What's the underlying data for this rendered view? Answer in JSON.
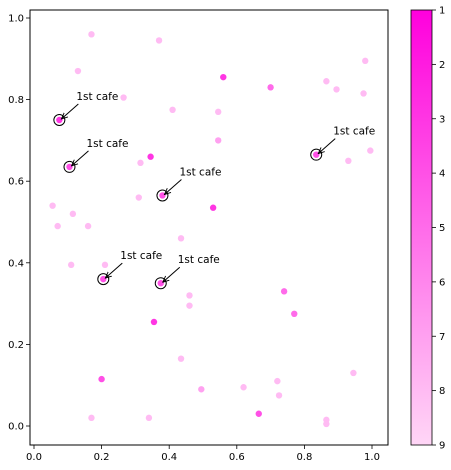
{
  "chart_data": {
    "type": "scatter",
    "title": "",
    "xlabel": "",
    "ylabel": "",
    "xlim": [
      0.0,
      1.0
    ],
    "ylim": [
      0.0,
      1.0
    ],
    "xticks": [
      0.0,
      0.2,
      0.4,
      0.6,
      0.8,
      1.0
    ],
    "yticks": [
      0.0,
      0.2,
      0.4,
      0.6,
      0.8,
      1.0
    ],
    "grid": false,
    "colorbar": {
      "label": "",
      "range": [
        1,
        9
      ],
      "ticks": [
        1,
        2,
        3,
        4,
        5,
        6,
        7,
        8,
        9
      ],
      "reversed": true,
      "color_low_value": "#ff00dd",
      "color_high_value": "#ffd6f6"
    },
    "points": [
      {
        "x": 0.17,
        "y": 0.96,
        "v": 8
      },
      {
        "x": 0.37,
        "y": 0.945,
        "v": 8
      },
      {
        "x": 0.98,
        "y": 0.895,
        "v": 8
      },
      {
        "x": 0.13,
        "y": 0.87,
        "v": 8
      },
      {
        "x": 0.56,
        "y": 0.855,
        "v": 3
      },
      {
        "x": 0.865,
        "y": 0.845,
        "v": 8
      },
      {
        "x": 0.7,
        "y": 0.83,
        "v": 5
      },
      {
        "x": 0.895,
        "y": 0.825,
        "v": 8
      },
      {
        "x": 0.975,
        "y": 0.815,
        "v": 8
      },
      {
        "x": 0.265,
        "y": 0.805,
        "v": 8
      },
      {
        "x": 0.41,
        "y": 0.775,
        "v": 8
      },
      {
        "x": 0.545,
        "y": 0.77,
        "v": 8
      },
      {
        "x": 0.075,
        "y": 0.75,
        "v": 3,
        "cafe": true
      },
      {
        "x": 0.545,
        "y": 0.7,
        "v": 7
      },
      {
        "x": 0.995,
        "y": 0.675,
        "v": 8
      },
      {
        "x": 0.835,
        "y": 0.665,
        "v": 4,
        "cafe": true
      },
      {
        "x": 0.345,
        "y": 0.66,
        "v": 3
      },
      {
        "x": 0.93,
        "y": 0.65,
        "v": 8
      },
      {
        "x": 0.315,
        "y": 0.645,
        "v": 8
      },
      {
        "x": 0.105,
        "y": 0.635,
        "v": 4,
        "cafe": true
      },
      {
        "x": 0.38,
        "y": 0.565,
        "v": 4,
        "cafe": true
      },
      {
        "x": 0.31,
        "y": 0.56,
        "v": 8
      },
      {
        "x": 0.055,
        "y": 0.54,
        "v": 8
      },
      {
        "x": 0.53,
        "y": 0.535,
        "v": 3
      },
      {
        "x": 0.115,
        "y": 0.52,
        "v": 8
      },
      {
        "x": 0.07,
        "y": 0.49,
        "v": 8
      },
      {
        "x": 0.16,
        "y": 0.49,
        "v": 8
      },
      {
        "x": 0.435,
        "y": 0.46,
        "v": 8
      },
      {
        "x": 0.11,
        "y": 0.395,
        "v": 8
      },
      {
        "x": 0.21,
        "y": 0.395,
        "v": 8
      },
      {
        "x": 0.205,
        "y": 0.36,
        "v": 4,
        "cafe": true
      },
      {
        "x": 0.375,
        "y": 0.35,
        "v": 4,
        "cafe": true
      },
      {
        "x": 0.74,
        "y": 0.33,
        "v": 5
      },
      {
        "x": 0.46,
        "y": 0.32,
        "v": 8
      },
      {
        "x": 0.46,
        "y": 0.295,
        "v": 8
      },
      {
        "x": 0.77,
        "y": 0.275,
        "v": 5
      },
      {
        "x": 0.355,
        "y": 0.255,
        "v": 3
      },
      {
        "x": 0.435,
        "y": 0.165,
        "v": 8
      },
      {
        "x": 0.945,
        "y": 0.13,
        "v": 8
      },
      {
        "x": 0.2,
        "y": 0.115,
        "v": 4
      },
      {
        "x": 0.72,
        "y": 0.11,
        "v": 8
      },
      {
        "x": 0.62,
        "y": 0.095,
        "v": 8
      },
      {
        "x": 0.495,
        "y": 0.09,
        "v": 7
      },
      {
        "x": 0.725,
        "y": 0.075,
        "v": 8
      },
      {
        "x": 0.665,
        "y": 0.03,
        "v": 4
      },
      {
        "x": 0.17,
        "y": 0.02,
        "v": 8
      },
      {
        "x": 0.34,
        "y": 0.02,
        "v": 8
      },
      {
        "x": 0.865,
        "y": 0.015,
        "v": 8
      },
      {
        "x": 0.865,
        "y": 0.005,
        "v": 8
      }
    ],
    "annotations": [
      {
        "text": "1st cafe",
        "x": 0.075,
        "y": 0.75
      },
      {
        "text": "1st cafe",
        "x": 0.105,
        "y": 0.635
      },
      {
        "text": "1st cafe",
        "x": 0.38,
        "y": 0.565
      },
      {
        "text": "1st cafe",
        "x": 0.835,
        "y": 0.665
      },
      {
        "text": "1st cafe",
        "x": 0.205,
        "y": 0.36
      },
      {
        "text": "1st cafe",
        "x": 0.375,
        "y": 0.35
      }
    ]
  }
}
